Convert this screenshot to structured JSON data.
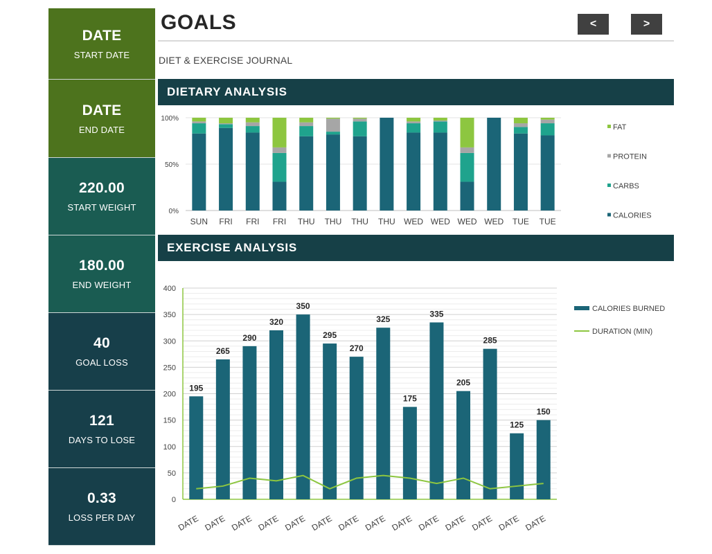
{
  "header": {
    "title": "GOALS",
    "subtitle": "DIET & EXERCISE JOURNAL",
    "prev_label": "<",
    "next_label": ">"
  },
  "kpis": [
    {
      "value": "DATE",
      "label": "START DATE"
    },
    {
      "value": "DATE",
      "label": "END DATE"
    },
    {
      "value": "220.00",
      "label": "START WEIGHT"
    },
    {
      "value": "180.00",
      "label": "END WEIGHT"
    },
    {
      "value": "40",
      "label": "GOAL LOSS"
    },
    {
      "value": "121",
      "label": "DAYS TO LOSE"
    },
    {
      "value": "0.33",
      "label": "LOSS PER DAY"
    }
  ],
  "sections": {
    "dietary": "DIETARY ANALYSIS",
    "exercise": "EXERCISE ANALYSIS"
  },
  "colors": {
    "calories": "#1b6577",
    "carbs": "#1fa38d",
    "protein": "#a6a6a6",
    "fat": "#8dc640",
    "kpi_green": "#4d731d",
    "kpi_teal": "#1a5c52",
    "kpi_dark": "#173f4a",
    "band": "#164047"
  },
  "chart_data": [
    {
      "type": "bar",
      "stacked": "percent",
      "categories": [
        "SUN",
        "FRI",
        "FRI",
        "FRI",
        "THU",
        "THU",
        "THU",
        "THU",
        "WED",
        "WED",
        "WED",
        "WED",
        "TUE",
        "TUE"
      ],
      "series": [
        {
          "name": "CALORIES",
          "values": [
            83,
            89,
            84,
            31,
            80,
            82,
            80,
            100,
            84,
            84,
            31,
            100,
            83,
            81
          ]
        },
        {
          "name": "CARBS",
          "values": [
            11,
            4,
            7,
            31,
            11,
            3,
            16,
            0,
            10,
            12,
            31,
            0,
            7,
            13
          ]
        },
        {
          "name": "PROTEIN",
          "values": [
            2,
            1,
            4,
            6,
            4,
            14,
            3,
            0,
            2,
            1,
            6,
            0,
            4,
            4
          ]
        },
        {
          "name": "FAT",
          "values": [
            4,
            6,
            5,
            32,
            5,
            1,
            1,
            0,
            4,
            3,
            32,
            0,
            6,
            2
          ]
        }
      ],
      "yticks": [
        "0%",
        "50%",
        "100%"
      ],
      "ylim": [
        0,
        100
      ],
      "legend": "right"
    },
    {
      "type": "bar",
      "categories": [
        "DATE",
        "DATE",
        "DATE",
        "DATE",
        "DATE",
        "DATE",
        "DATE",
        "DATE",
        "DATE",
        "DATE",
        "DATE",
        "DATE",
        "DATE",
        "DATE"
      ],
      "series": [
        {
          "name": "CALORIES BURNED",
          "type": "bar",
          "values": [
            195,
            265,
            290,
            320,
            350,
            295,
            270,
            325,
            175,
            335,
            205,
            285,
            125,
            150
          ]
        },
        {
          "name": "DURATION (MIN)",
          "type": "line",
          "values": [
            20,
            25,
            40,
            35,
            45,
            20,
            40,
            45,
            40,
            30,
            40,
            20,
            25,
            30
          ]
        }
      ],
      "yticks": [
        0,
        50,
        100,
        150,
        200,
        250,
        300,
        350,
        400
      ],
      "ylim": [
        0,
        400
      ],
      "data_labels": true,
      "grid": true,
      "legend": "right"
    }
  ]
}
